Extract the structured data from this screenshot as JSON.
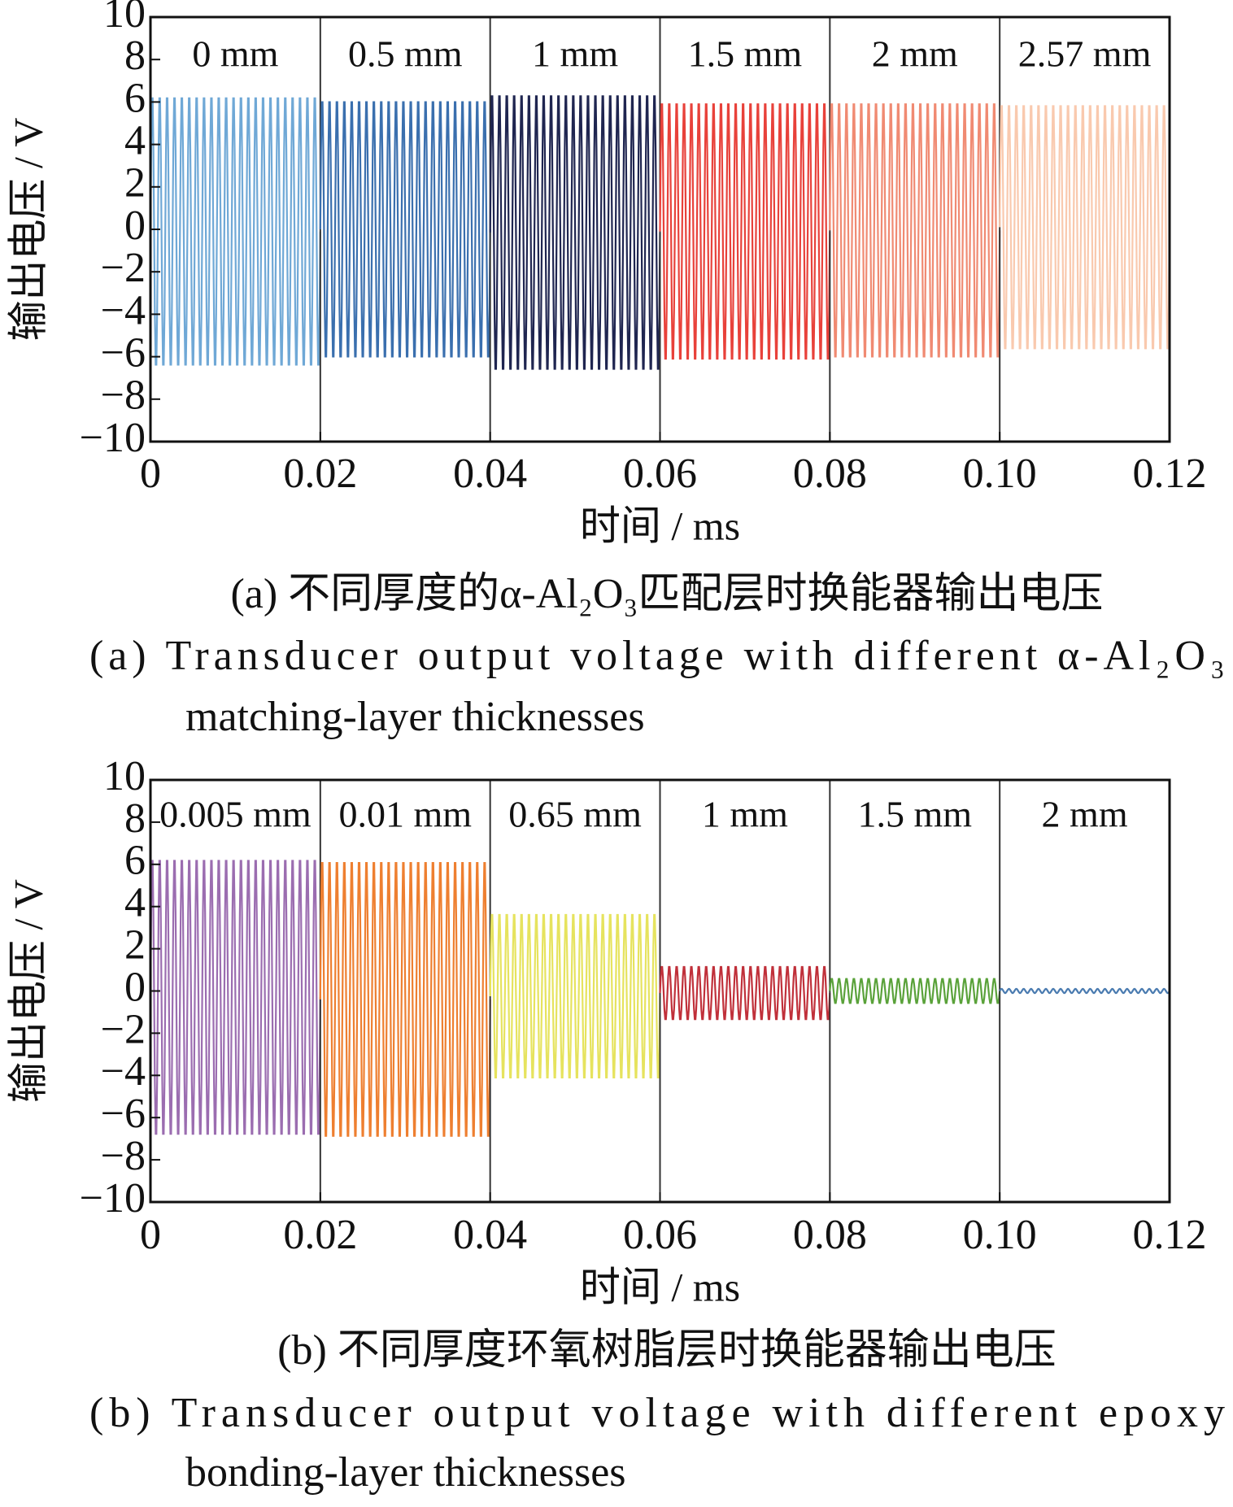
{
  "chart_data": [
    {
      "type": "line",
      "xlabel": "时间 / ms",
      "ylabel": "输出电压 / V",
      "caption_cn": "(a)  不同厚度的α-Al₂O₃匹配层时换能器输出电压",
      "caption_en": [
        "(a)  Transducer output voltage with different α-Al₂O₃",
        "matching-layer thicknesses"
      ],
      "xlim": [
        0,
        0.12
      ],
      "xticks": [
        0,
        0.02,
        0.04,
        0.06,
        0.08,
        {
          "value": 0.1,
          "label": "0.10"
        },
        0.12
      ],
      "ylim": [
        -10,
        10
      ],
      "yticks": [
        {
          "value": -10,
          "label": "−10"
        },
        {
          "value": -8,
          "label": "−8"
        },
        {
          "value": -6,
          "label": "−6"
        },
        {
          "value": -4,
          "label": "−4"
        },
        {
          "value": -2,
          "label": "−2"
        },
        0,
        2,
        4,
        6,
        8,
        10
      ],
      "series": [
        {
          "name": "0 mm",
          "color": "#6fa8d6",
          "x": [
            0,
            0.02
          ],
          "values": [
            6.5,
            -6.7
          ]
        },
        {
          "name": "0.5 mm",
          "color": "#3a6fae",
          "x": [
            0.02,
            0.04
          ],
          "values": [
            6.3,
            -6.3
          ]
        },
        {
          "name": "1 mm",
          "color": "#1f2550",
          "x": [
            0.04,
            0.06
          ],
          "values": [
            6.6,
            -6.9
          ]
        },
        {
          "name": "1.5 mm",
          "color": "#e8413a",
          "x": [
            0.06,
            0.08
          ],
          "values": [
            6.2,
            -6.4
          ]
        },
        {
          "name": "2 mm",
          "color": "#f08a72",
          "x": [
            0.08,
            0.1
          ],
          "values": [
            6.2,
            -6.3
          ]
        },
        {
          "name": "2.57 mm",
          "color": "#f9c9ae",
          "x": [
            0.1,
            0.12
          ],
          "values": [
            6.1,
            -5.9
          ]
        }
      ]
    },
    {
      "type": "line",
      "xlabel": "时间 / ms",
      "ylabel": "输出电压 / V",
      "caption_cn": "(b)  不同厚度环氧树脂层时换能器输出电压",
      "caption_en": [
        "(b)  Transducer output voltage with different epoxy",
        "bonding-layer thicknesses"
      ],
      "xlim": [
        0,
        0.12
      ],
      "xticks": [
        0,
        0.02,
        0.04,
        0.06,
        0.08,
        {
          "value": 0.1,
          "label": "0.10"
        },
        0.12
      ],
      "ylim": [
        -10,
        10
      ],
      "yticks": [
        {
          "value": -10,
          "label": "−10"
        },
        {
          "value": -8,
          "label": "−8"
        },
        {
          "value": -6,
          "label": "−6"
        },
        {
          "value": -4,
          "label": "−4"
        },
        {
          "value": -2,
          "label": "−2"
        },
        0,
        2,
        4,
        6,
        8,
        10
      ],
      "series": [
        {
          "name": "0.005 mm",
          "color": "#9b6db0",
          "x": [
            0,
            0.02
          ],
          "values": [
            6.5,
            -7.1
          ]
        },
        {
          "name": "0.01 mm",
          "color": "#ee7f30",
          "x": [
            0.02,
            0.04
          ],
          "values": [
            6.4,
            -7.2
          ]
        },
        {
          "name": "0.65 mm",
          "color": "#e6e35e",
          "x": [
            0.04,
            0.06
          ],
          "values": [
            3.8,
            -4.3
          ]
        },
        {
          "name": "1 mm",
          "color": "#c0303a",
          "x": [
            0.06,
            0.08
          ],
          "values": [
            1.2,
            -1.4
          ]
        },
        {
          "name": "1.5 mm",
          "color": "#5aa23a",
          "x": [
            0.08,
            0.1
          ],
          "values": [
            0.6,
            -0.6
          ]
        },
        {
          "name": "2 mm",
          "color": "#4a7bb0",
          "x": [
            0.1,
            0.12
          ],
          "values": [
            0.1,
            -0.1
          ]
        }
      ]
    }
  ]
}
